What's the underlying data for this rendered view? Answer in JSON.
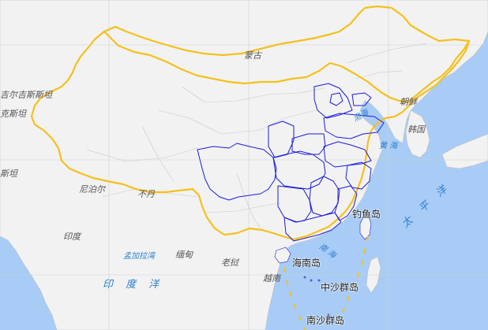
{
  "map": {
    "colors": {
      "ocean": "#a8ccf5",
      "land": "#f2f2f2",
      "border_national": "#f5c01c",
      "border_province_highlight": "#1a1ae0",
      "border_province": "#c8c8c8",
      "grid": "#d0d0d0",
      "label_country": "#555555",
      "label_water": "#2a7fd0"
    },
    "labels": {
      "mongolia": "蒙古",
      "kyrgyzstan": "吉尔吉斯斯坦",
      "tajikistan": "克斯坦",
      "afghanistan": "斯坦",
      "nepal": "尼泊尔",
      "bhutan": "不丹",
      "india": "印度",
      "bay_of_bengal": "孟加拉湾",
      "myanmar": "缅甸",
      "laos": "老挝",
      "vietnam": "越南",
      "north_korea": "朝鲜",
      "south_korea": "韩国",
      "bohai": "渤海",
      "yellow_sea": "黄 海",
      "south_china_sea": "南 海",
      "indian_ocean": "印 度 洋",
      "pacific_ocean": "太 平 洋",
      "diaoyu": "钓鱼岛",
      "hainan": "海南岛",
      "zhongsha": "中沙群岛",
      "nansha": "南沙群岛"
    }
  }
}
